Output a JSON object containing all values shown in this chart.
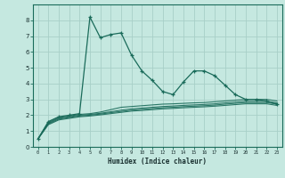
{
  "title": "",
  "xlabel": "Humidex (Indice chaleur)",
  "ylabel": "",
  "bg_color": "#c5e8e0",
  "line_color": "#1a6b5a",
  "grid_color": "#a8cfc8",
  "xlim": [
    -0.5,
    23.5
  ],
  "ylim": [
    0,
    9
  ],
  "yticks": [
    0,
    1,
    2,
    3,
    4,
    5,
    6,
    7,
    8
  ],
  "xticks": [
    0,
    1,
    2,
    3,
    4,
    5,
    6,
    7,
    8,
    9,
    10,
    11,
    12,
    13,
    14,
    15,
    16,
    17,
    18,
    19,
    20,
    21,
    22,
    23
  ],
  "main_line_x": [
    0,
    1,
    2,
    3,
    4,
    5,
    6,
    7,
    8,
    9,
    10,
    11,
    12,
    13,
    14,
    15,
    16,
    17,
    18,
    19,
    20,
    21,
    22,
    23
  ],
  "main_line_y": [
    0.5,
    1.6,
    1.9,
    2.0,
    2.1,
    8.2,
    6.9,
    7.1,
    7.2,
    5.8,
    4.8,
    4.2,
    3.5,
    3.3,
    4.1,
    4.8,
    4.8,
    4.5,
    3.9,
    3.3,
    3.0,
    3.0,
    2.9,
    2.7
  ],
  "smooth_lines": [
    [
      0.5,
      1.55,
      1.85,
      1.95,
      2.05,
      2.1,
      2.2,
      2.35,
      2.5,
      2.55,
      2.6,
      2.65,
      2.7,
      2.72,
      2.75,
      2.78,
      2.8,
      2.85,
      2.9,
      2.95,
      3.0,
      3.0,
      3.0,
      2.9
    ],
    [
      0.5,
      1.5,
      1.8,
      1.9,
      2.0,
      2.05,
      2.12,
      2.22,
      2.32,
      2.4,
      2.45,
      2.5,
      2.55,
      2.58,
      2.62,
      2.65,
      2.68,
      2.72,
      2.78,
      2.83,
      2.88,
      2.88,
      2.88,
      2.78
    ],
    [
      0.5,
      1.45,
      1.75,
      1.85,
      1.95,
      2.0,
      2.07,
      2.16,
      2.24,
      2.32,
      2.37,
      2.42,
      2.47,
      2.5,
      2.54,
      2.57,
      2.6,
      2.64,
      2.7,
      2.75,
      2.8,
      2.8,
      2.8,
      2.7
    ],
    [
      0.5,
      1.4,
      1.7,
      1.8,
      1.9,
      1.95,
      2.02,
      2.1,
      2.18,
      2.26,
      2.3,
      2.35,
      2.4,
      2.43,
      2.47,
      2.5,
      2.53,
      2.57,
      2.62,
      2.67,
      2.72,
      2.72,
      2.72,
      2.62
    ]
  ]
}
